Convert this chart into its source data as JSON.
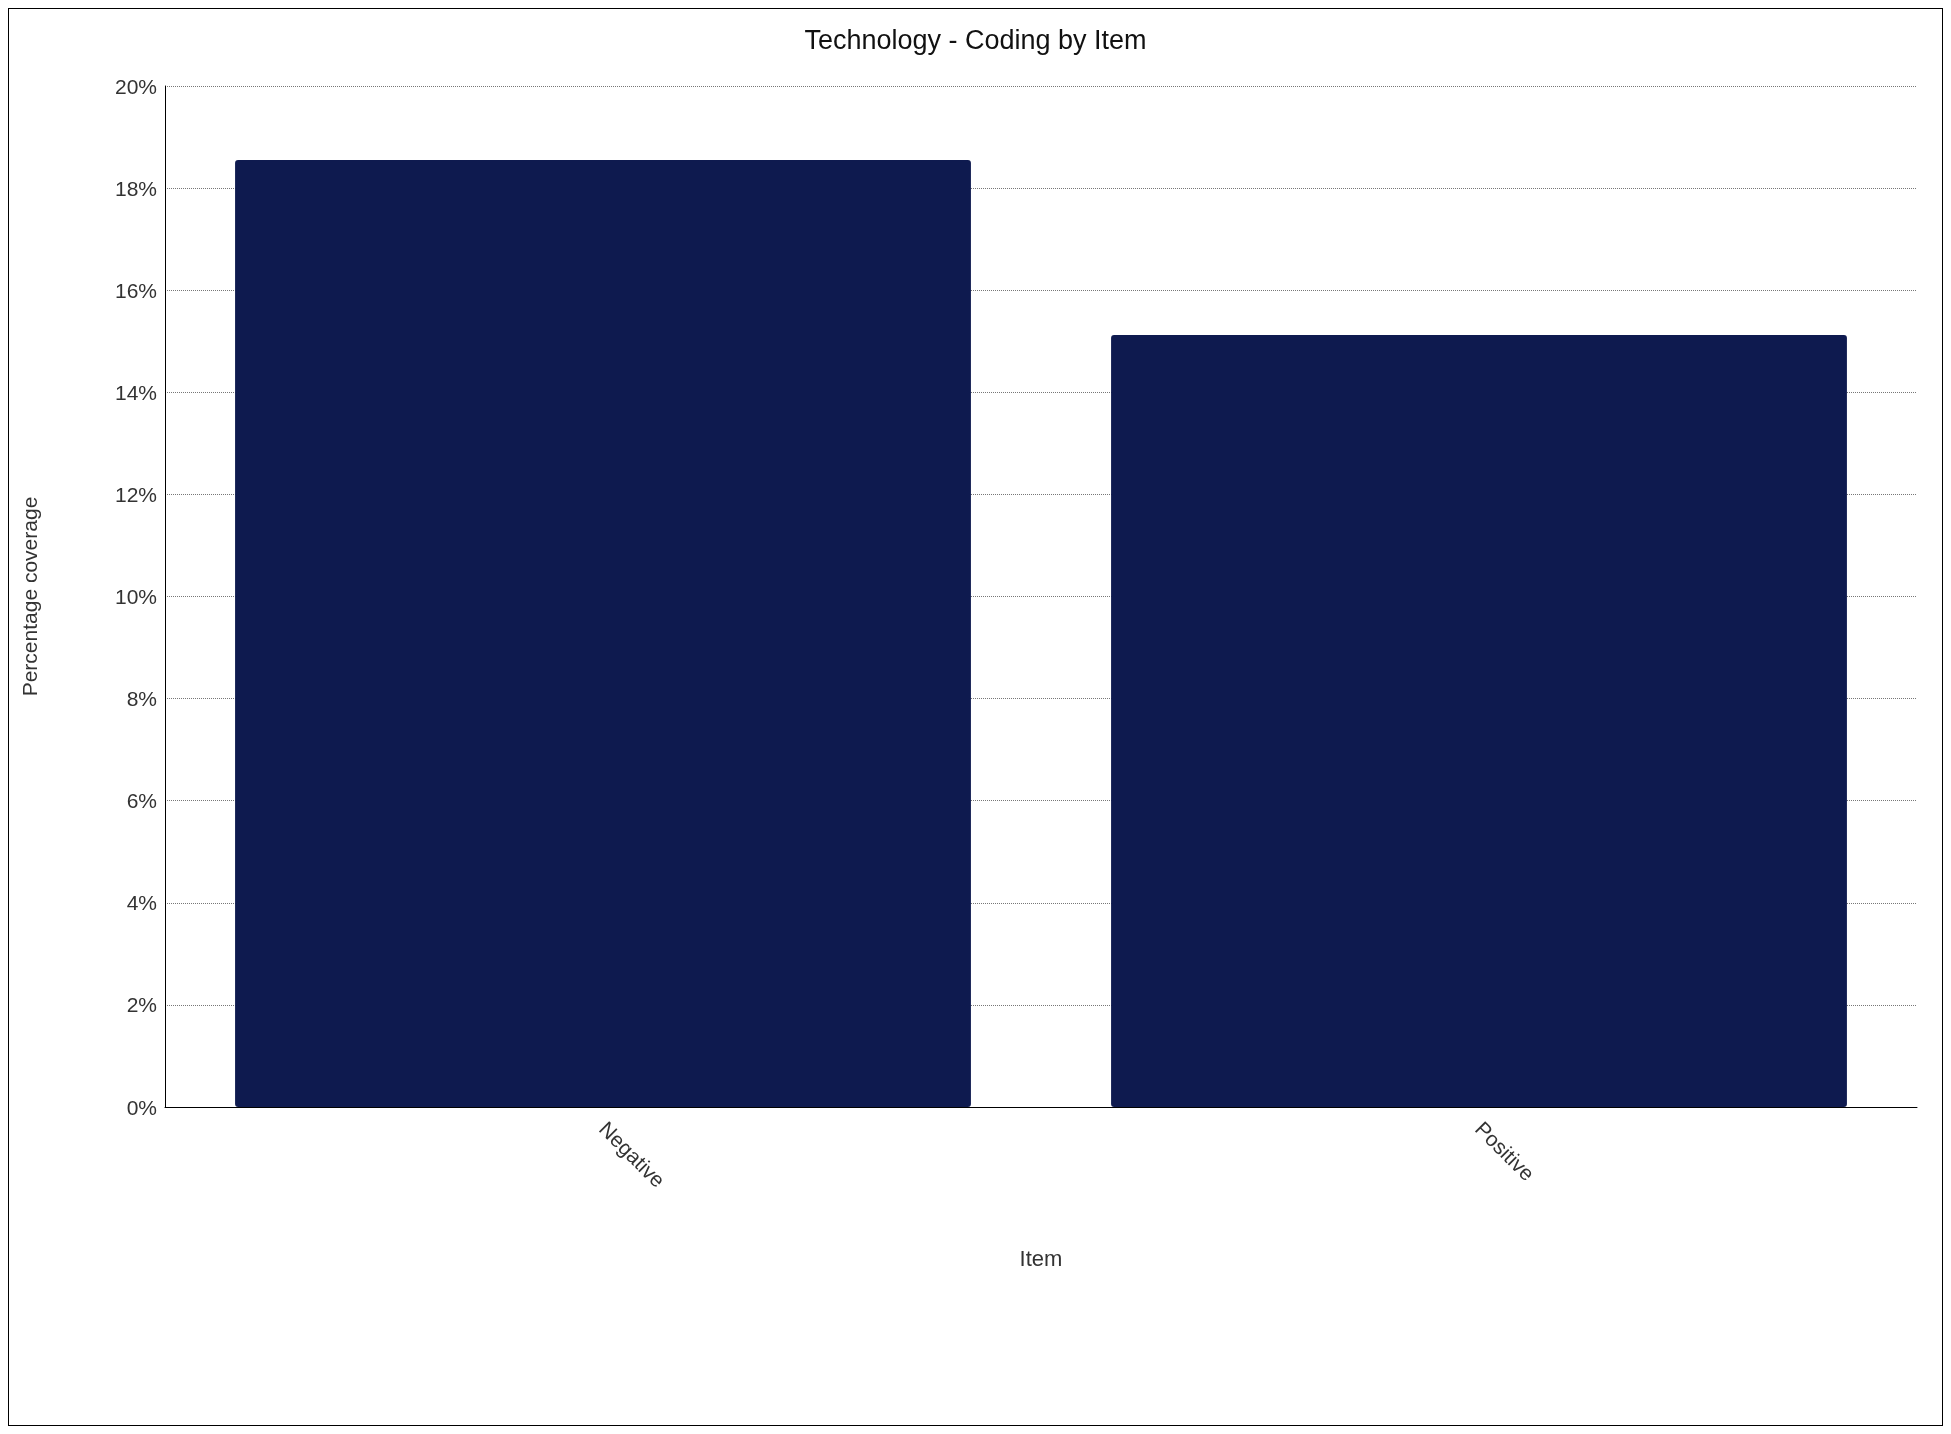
{
  "chart_data": {
    "type": "bar",
    "title": "Technology - Coding by Item",
    "xlabel": "Item",
    "ylabel": "Percentage coverage",
    "categories": [
      "Negative",
      "Positive"
    ],
    "values": [
      18.55,
      15.12
    ],
    "color": "#0e1a4f",
    "ylim": [
      0,
      20
    ],
    "yticks": [
      {
        "value": 0,
        "label": "0%"
      },
      {
        "value": 2,
        "label": "2%"
      },
      {
        "value": 4,
        "label": "4%"
      },
      {
        "value": 6,
        "label": "6%"
      },
      {
        "value": 8,
        "label": "8%"
      },
      {
        "value": 10,
        "label": "10%"
      },
      {
        "value": 12,
        "label": "12%"
      },
      {
        "value": 14,
        "label": "14%"
      },
      {
        "value": 16,
        "label": "16%"
      },
      {
        "value": 18,
        "label": "18%"
      },
      {
        "value": 20,
        "label": "20%"
      }
    ],
    "grid": "y"
  }
}
